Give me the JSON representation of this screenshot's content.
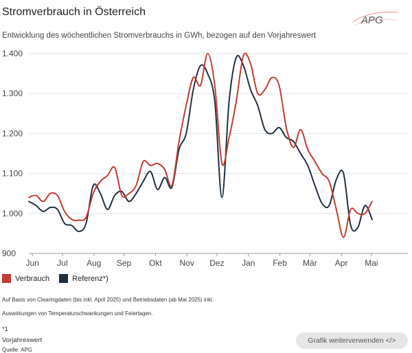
{
  "header": {
    "title": "Stromverbrauch in Österreich",
    "subtitle": "Entwicklung des wöchentlichen Stromverbrauchs in GWh, bezogen auf den Vorjahreswert",
    "logo_text": "APG"
  },
  "colors": {
    "verbrauch": "#c23b32",
    "referenz": "#1f2f3f",
    "grid": "#e3e3e3",
    "accent": "#e8a3a3"
  },
  "chart_data": {
    "type": "line",
    "title": "Stromverbrauch in Österreich",
    "ylim": [
      900,
      1400
    ],
    "yticks": [
      900,
      1000,
      1100,
      1200,
      1300,
      1400
    ],
    "ytick_labels": [
      "900",
      "1.000",
      "1.100",
      "1.200",
      "1.300",
      "1.400"
    ],
    "xlim": [
      0,
      53
    ],
    "month_labels": [
      "Jun",
      "Jul",
      "Aug",
      "Sep",
      "Okt",
      "Nov",
      "Dez",
      "Jan",
      "Feb",
      "Mär",
      "Apr",
      "Mai"
    ],
    "month_positions": [
      0.5,
      4.7,
      9.1,
      13.3,
      17.7,
      22.1,
      26.3,
      30.7,
      35.1,
      39.3,
      43.7,
      47.9
    ],
    "grid": true,
    "legend": "bottom-left",
    "series": [
      {
        "name": "Verbrauch",
        "color": "#c23b32",
        "x": [
          0,
          1,
          2,
          3,
          4,
          5,
          6,
          7,
          8,
          9,
          10,
          11,
          12,
          13,
          14,
          15,
          16,
          17,
          18,
          19,
          20,
          21,
          22,
          23,
          24,
          25,
          26,
          27,
          28,
          29,
          30,
          31,
          32,
          33,
          34,
          35,
          36,
          37,
          38,
          39,
          40,
          41,
          42,
          43,
          44,
          45,
          46,
          47,
          48
        ],
        "values": [
          1040,
          1045,
          1030,
          1050,
          1045,
          1005,
          985,
          983,
          990,
          1050,
          1080,
          1095,
          1115,
          1045,
          1050,
          1070,
          1130,
          1120,
          1125,
          1110,
          1070,
          1180,
          1270,
          1340,
          1320,
          1400,
          1320,
          1125,
          1190,
          1280,
          1395,
          1375,
          1300,
          1310,
          1340,
          1320,
          1215,
          1165,
          1210,
          1160,
          1130,
          1100,
          1080,
          1010,
          940,
          1010,
          1000,
          1000,
          1030
        ]
      },
      {
        "name": "Referenz*)",
        "color": "#1f2f3f",
        "x": [
          0,
          1,
          2,
          3,
          4,
          5,
          6,
          7,
          8,
          9,
          10,
          11,
          12,
          13,
          14,
          15,
          16,
          17,
          18,
          19,
          20,
          21,
          22,
          23,
          24,
          25,
          26,
          27,
          28,
          29,
          30,
          31,
          32,
          33,
          34,
          35,
          36,
          37,
          38,
          39,
          40,
          41,
          42,
          43,
          44,
          45,
          46,
          47,
          48
        ],
        "values": [
          1030,
          1020,
          1005,
          1015,
          1010,
          975,
          970,
          955,
          975,
          1070,
          1050,
          1010,
          1045,
          1055,
          1030,
          1050,
          1080,
          1105,
          1060,
          1090,
          1065,
          1160,
          1200,
          1310,
          1370,
          1350,
          1280,
          1040,
          1280,
          1390,
          1370,
          1310,
          1270,
          1210,
          1200,
          1215,
          1190,
          1180,
          1150,
          1120,
          1070,
          1025,
          1020,
          1085,
          1100,
          970,
          965,
          1020,
          985
        ]
      }
    ]
  },
  "legend": [
    {
      "label": "Verbrauch",
      "color": "#c23b32"
    },
    {
      "label": "Referenz*)",
      "color": "#1f2f3f"
    }
  ],
  "notes": {
    "line1": "Auf Basis von Clearingdaten (bis inkl. April 2025) und Betriebsdaten (ab Mai 2025) inkl.",
    "line2": "Auswirkungen von Temperaturschwankungen und Feiertagen.",
    "footnote_mark": "*1",
    "footnote_text": "Vorjahreswert",
    "source": "Quelle: APG"
  },
  "reuse_button": {
    "label": "Grafik weiterverwenden </>"
  }
}
